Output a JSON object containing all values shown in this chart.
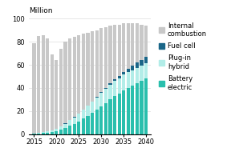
{
  "years": [
    2015,
    2016,
    2017,
    2018,
    2019,
    2020,
    2021,
    2022,
    2023,
    2024,
    2025,
    2026,
    2027,
    2028,
    2029,
    2030,
    2031,
    2032,
    2033,
    2034,
    2035,
    2036,
    2037,
    2038,
    2039,
    2040
  ],
  "battery_electric": [
    0.5,
    0.8,
    1.0,
    1.5,
    2.0,
    2.5,
    4.0,
    5.5,
    7.5,
    9.0,
    11.0,
    13.5,
    16.0,
    18.5,
    21.0,
    24.0,
    27.0,
    30.0,
    33.0,
    35.0,
    38.0,
    40.0,
    42.0,
    44.0,
    46.0,
    48.0
  ],
  "plugin_hybrid": [
    0.3,
    0.5,
    0.8,
    1.0,
    1.5,
    2.0,
    2.5,
    3.5,
    4.5,
    5.5,
    6.5,
    7.5,
    8.5,
    9.5,
    10.5,
    11.5,
    12.0,
    12.5,
    13.0,
    13.5,
    13.5,
    13.5,
    13.5,
    13.5,
    13.5,
    13.5
  ],
  "fuel_cell": [
    0.0,
    0.0,
    0.0,
    0.1,
    0.1,
    0.1,
    0.2,
    0.2,
    0.3,
    0.3,
    0.5,
    0.5,
    0.5,
    0.5,
    1.0,
    1.0,
    1.0,
    1.5,
    1.5,
    2.0,
    2.5,
    3.0,
    4.0,
    4.5,
    5.0,
    5.5
  ],
  "total": [
    79,
    85,
    86,
    83,
    69,
    64,
    74,
    80,
    83,
    84,
    86,
    87,
    88,
    89,
    90,
    92,
    93,
    94,
    95,
    95,
    96,
    96,
    96,
    96,
    95,
    94
  ],
  "color_ice": "#c8c8c8",
  "color_fc": "#1a6688",
  "color_phev": "#b2ede8",
  "color_bev": "#2abfad",
  "ylabel": "Million",
  "yticks": [
    0,
    20,
    40,
    60,
    80,
    100
  ],
  "xticks": [
    2015,
    2020,
    2025,
    2030,
    2035,
    2040
  ],
  "legend_labels": [
    "Internal\ncombustion",
    "Fuel cell",
    "Plug-in\nhybrid",
    "Battery\nelectric"
  ],
  "legend_colors": [
    "#c8c8c8",
    "#1a6688",
    "#b2ede8",
    "#2abfad"
  ]
}
